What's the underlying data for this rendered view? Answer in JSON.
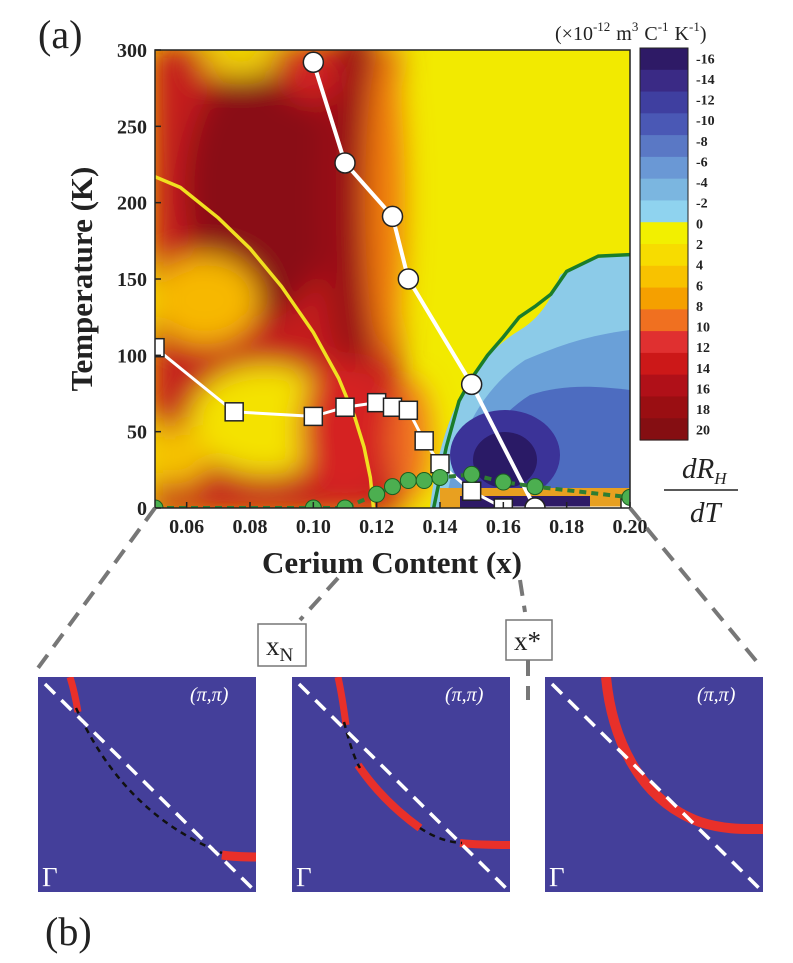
{
  "chart_data": [
    {
      "type": "heatmap",
      "panel_label": "(a)",
      "title": "",
      "xlabel": "Cerium Content (x)",
      "ylabel": "Temperature (K)",
      "xlim": [
        0.05,
        0.2
      ],
      "ylim": [
        0,
        300
      ],
      "x_ticks": [
        "0.06",
        "0.08",
        "0.10",
        "0.12",
        "0.14",
        "0.16",
        "0.18",
        "0.20"
      ],
      "x_tick_values": [
        0.06,
        0.08,
        0.1,
        0.12,
        0.14,
        0.16,
        0.18,
        0.2
      ],
      "y_ticks": [
        "0",
        "50",
        "100",
        "150",
        "200",
        "250",
        "300"
      ],
      "y_tick_values": [
        0,
        50,
        100,
        150,
        200,
        250,
        300
      ],
      "colorbar": {
        "label": "dR_H / dT",
        "label_num": "dR",
        "label_sub": "H",
        "label_den": "dT",
        "unit_prefix": "(×10",
        "unit_exp": "-12",
        "unit_m": "m",
        "unit_m_exp": "3",
        "unit_c": "C",
        "unit_c_exp": "-1",
        "unit_k": "K",
        "unit_k_exp": "-1",
        "unit_close": ")",
        "ticks": [
          "-16",
          "-14",
          "-12",
          "-10",
          "-8",
          "-6",
          "-4",
          "-2",
          "0",
          "2",
          "4",
          "6",
          "8",
          "10",
          "12",
          "14",
          "16",
          "18",
          "20"
        ],
        "tick_values": [
          -16,
          -14,
          -12,
          -10,
          -8,
          -6,
          -4,
          -2,
          0,
          2,
          4,
          6,
          8,
          10,
          12,
          14,
          16,
          18,
          20
        ],
        "range": [
          -17,
          21
        ],
        "colors": [
          "#2e1a66",
          "#3a2a85",
          "#3f3fa0",
          "#4a58b5",
          "#5a78c5",
          "#6a98d5",
          "#7bb6e0",
          "#8fd3ef",
          "#f2f000",
          "#f7dc00",
          "#f8c200",
          "#f5a000",
          "#f07020",
          "#e03030",
          "#cc1818",
          "#b01018",
          "#9a0e12",
          "#850e12"
        ]
      },
      "series": [
        {
          "marker": "circle",
          "fill": "#ffffff",
          "line_color": "#ffffff",
          "x": [
            0.1,
            0.11,
            0.125,
            0.13,
            0.15,
            0.17
          ],
          "y": [
            292,
            226,
            191,
            150,
            81,
            0
          ]
        },
        {
          "marker": "square",
          "fill": "#ffffff",
          "line_color": "#ffffff",
          "x": [
            0.05,
            0.075,
            0.1,
            0.11,
            0.12,
            0.125,
            0.13,
            0.135,
            0.14,
            0.15,
            0.16,
            0.2
          ],
          "y": [
            105,
            63,
            60,
            66,
            69,
            66,
            64,
            44,
            29,
            11,
            0,
            0
          ]
        },
        {
          "marker": "circle",
          "fill": "#4caf50",
          "line_color": "#2e7d32",
          "x": [
            0.05,
            0.1,
            0.11,
            0.12,
            0.125,
            0.13,
            0.135,
            0.14,
            0.15,
            0.16,
            0.17,
            0.2
          ],
          "y": [
            0,
            0,
            0,
            9,
            14,
            18,
            18,
            20,
            22,
            17,
            14,
            7
          ]
        }
      ],
      "contours": [
        {
          "color": "#f0e020",
          "x": [
            0.05,
            0.058,
            0.07,
            0.08,
            0.09,
            0.1,
            0.108,
            0.113,
            0.116,
            0.118,
            0.119
          ],
          "y": [
            217,
            210,
            190,
            170,
            145,
            115,
            85,
            60,
            40,
            20,
            0
          ]
        },
        {
          "color": "#1a7d2a",
          "x": [
            0.138,
            0.142,
            0.146,
            0.15,
            0.155,
            0.16,
            0.165,
            0.17,
            0.175,
            0.18,
            0.19,
            0.2
          ],
          "y": [
            0,
            40,
            70,
            85,
            100,
            112,
            125,
            132,
            140,
            155,
            165,
            166
          ]
        }
      ],
      "annotations": [
        {
          "text": "x",
          "sub": "N",
          "at_x": 0.12
        },
        {
          "text": "x*",
          "at_x": 0.165
        }
      ]
    },
    {
      "type": "diagram",
      "panel_label": "(b)",
      "panels": [
        {
          "corner_label": "(π,π)",
          "origin_label": "Γ",
          "arc": "pockets"
        },
        {
          "corner_label": "(π,π)",
          "origin_label": "Γ",
          "arc": "pockets-larger"
        },
        {
          "corner_label": "(π,π)",
          "origin_label": "Γ",
          "arc": "large-surface"
        }
      ]
    }
  ]
}
